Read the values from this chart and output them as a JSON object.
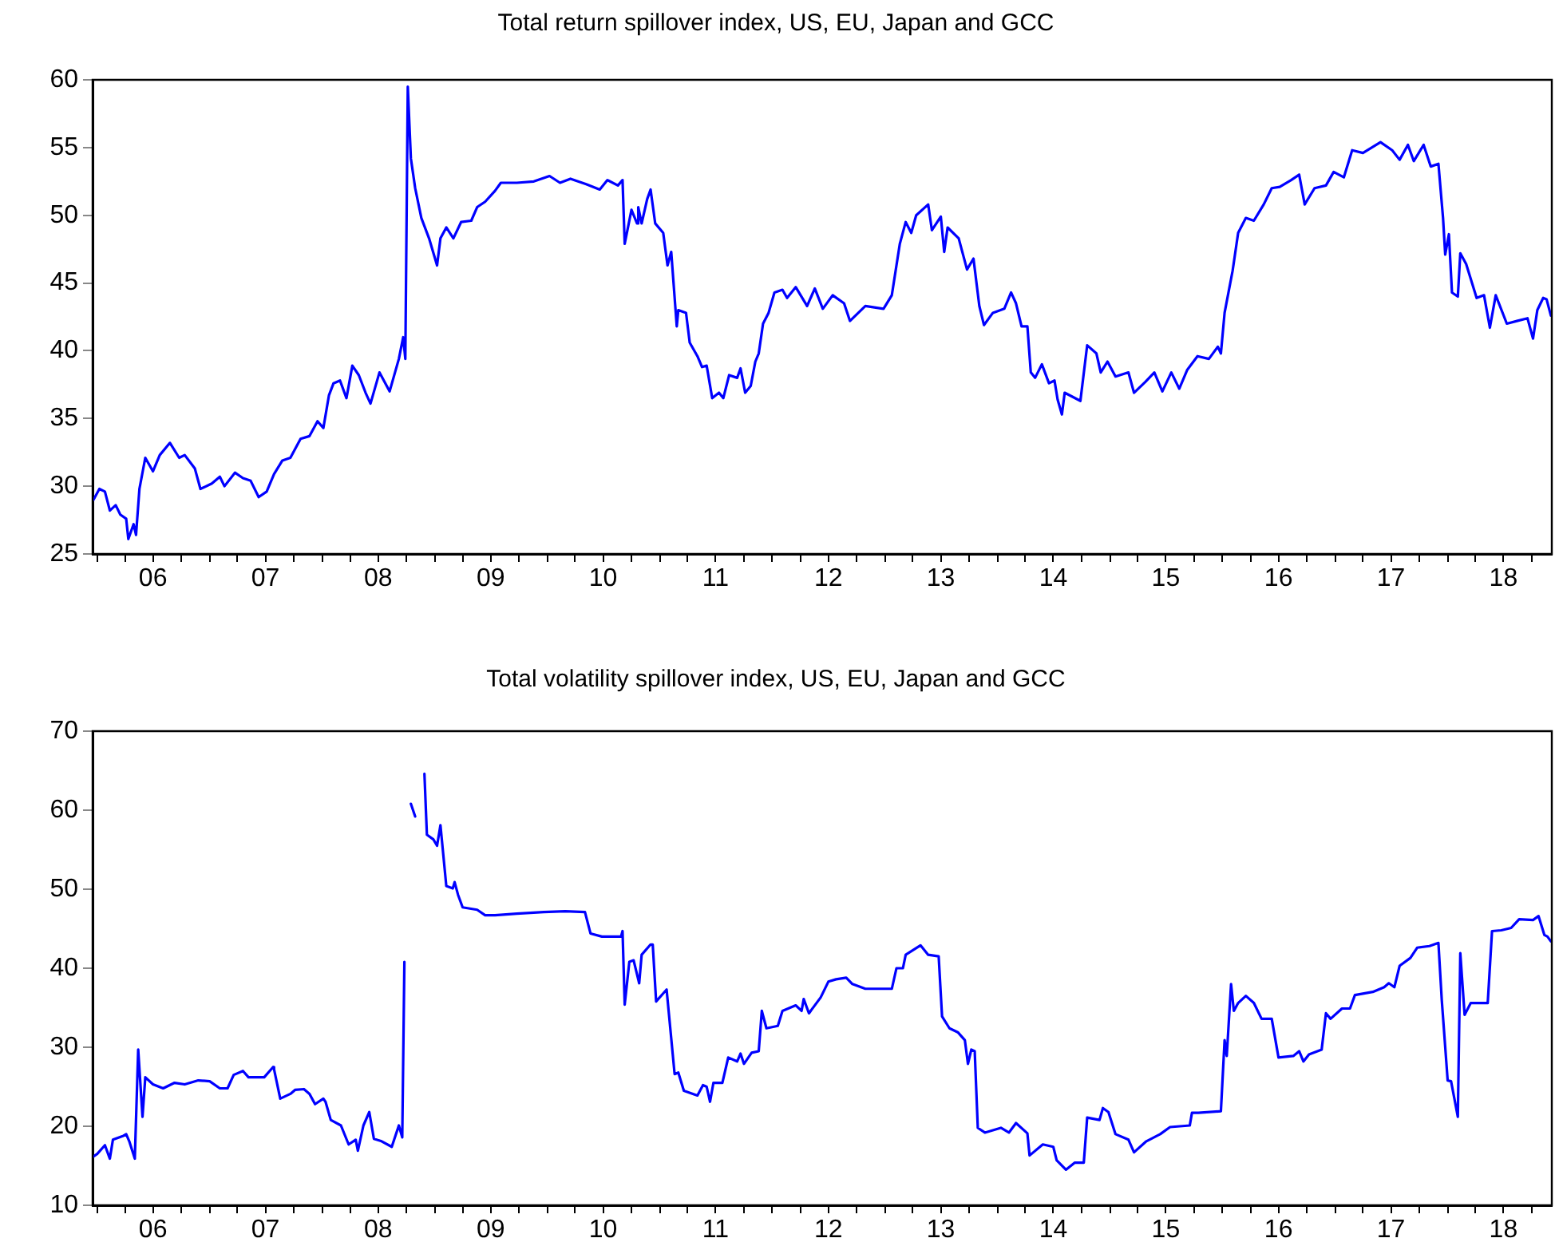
{
  "chart_data": [
    {
      "type": "line",
      "title": "Total return spillover index, US, EU, Japan and GCC",
      "color": "#0000ff",
      "marker": "none",
      "grid": false,
      "xlim": [
        "2005-12-17",
        "2018-12-05"
      ],
      "ylim": [
        25,
        60
      ],
      "yticks": [
        25,
        30,
        35,
        40,
        45,
        50,
        55,
        60
      ],
      "xticks": [
        {
          "value": "2006-01-01",
          "label": null
        },
        {
          "value": "2006-04-01",
          "label": null
        },
        {
          "value": "2006-07-01",
          "label": "06"
        },
        {
          "value": "2006-10-01",
          "label": null
        },
        {
          "value": "2007-01-01",
          "label": null
        },
        {
          "value": "2007-04-01",
          "label": null
        },
        {
          "value": "2007-07-01",
          "label": "07"
        },
        {
          "value": "2007-10-01",
          "label": null
        },
        {
          "value": "2008-01-01",
          "label": null
        },
        {
          "value": "2008-04-01",
          "label": null
        },
        {
          "value": "2008-07-01",
          "label": "08"
        },
        {
          "value": "2008-10-01",
          "label": null
        },
        {
          "value": "2009-01-01",
          "label": null
        },
        {
          "value": "2009-04-01",
          "label": null
        },
        {
          "value": "2009-07-01",
          "label": "09"
        },
        {
          "value": "2009-10-01",
          "label": null
        },
        {
          "value": "2010-01-01",
          "label": null
        },
        {
          "value": "2010-04-01",
          "label": null
        },
        {
          "value": "2010-07-01",
          "label": "10"
        },
        {
          "value": "2010-10-01",
          "label": null
        },
        {
          "value": "2011-01-01",
          "label": null
        },
        {
          "value": "2011-04-01",
          "label": null
        },
        {
          "value": "2011-07-01",
          "label": "11"
        },
        {
          "value": "2011-10-01",
          "label": null
        },
        {
          "value": "2012-01-01",
          "label": null
        },
        {
          "value": "2012-04-01",
          "label": null
        },
        {
          "value": "2012-07-01",
          "label": "12"
        },
        {
          "value": "2012-10-01",
          "label": null
        },
        {
          "value": "2013-01-01",
          "label": null
        },
        {
          "value": "2013-04-01",
          "label": null
        },
        {
          "value": "2013-07-01",
          "label": "13"
        },
        {
          "value": "2013-10-01",
          "label": null
        },
        {
          "value": "2014-01-01",
          "label": null
        },
        {
          "value": "2014-04-01",
          "label": null
        },
        {
          "value": "2014-07-01",
          "label": "14"
        },
        {
          "value": "2014-10-01",
          "label": null
        },
        {
          "value": "2015-01-01",
          "label": null
        },
        {
          "value": "2015-04-01",
          "label": null
        },
        {
          "value": "2015-07-01",
          "label": "15"
        },
        {
          "value": "2015-10-01",
          "label": null
        },
        {
          "value": "2016-01-01",
          "label": null
        },
        {
          "value": "2016-04-01",
          "label": null
        },
        {
          "value": "2016-07-01",
          "label": "16"
        },
        {
          "value": "2016-10-01",
          "label": null
        },
        {
          "value": "2017-01-01",
          "label": null
        },
        {
          "value": "2017-04-01",
          "label": null
        },
        {
          "value": "2017-07-01",
          "label": "17"
        },
        {
          "value": "2017-10-01",
          "label": null
        },
        {
          "value": "2018-01-01",
          "label": null
        },
        {
          "value": "2018-04-01",
          "label": null
        },
        {
          "value": "2018-07-01",
          "label": "18"
        },
        {
          "value": "2018-10-01",
          "label": null
        }
      ],
      "x": [
        "2005-12-20",
        "2006-01-08",
        "2006-01-26",
        "2006-02-11",
        "2006-03-02",
        "2006-03-17",
        "2006-04-05",
        "2006-04-12",
        "2006-04-29",
        "2006-05-07",
        "2006-05-18",
        "2006-06-06",
        "2006-07-01",
        "2006-07-23",
        "2006-08-25",
        "2006-09-24",
        "2006-10-12",
        "2006-11-14",
        "2006-12-02",
        "2007-01-08",
        "2007-02-03",
        "2007-02-18",
        "2007-03-24",
        "2007-04-19",
        "2007-05-14",
        "2007-06-09",
        "2007-07-05",
        "2007-07-29",
        "2007-08-25",
        "2007-09-20",
        "2007-10-23",
        "2007-11-21",
        "2007-12-17",
        "2008-01-05",
        "2008-01-23",
        "2008-02-07",
        "2008-02-28",
        "2008-03-20",
        "2008-04-08",
        "2008-04-29",
        "2008-05-21",
        "2008-06-06",
        "2008-07-05",
        "2008-08-07",
        "2008-09-06",
        "2008-09-20",
        "2008-09-27",
        "2008-10-05",
        "2008-10-15",
        "2008-10-29",
        "2008-11-18",
        "2008-12-13",
        "2009-01-08",
        "2009-01-19",
        "2009-02-07",
        "2009-03-02",
        "2009-03-27",
        "2009-04-29",
        "2009-05-18",
        "2009-06-13",
        "2009-07-15",
        "2009-08-03",
        "2009-09-24",
        "2009-11-18",
        "2010-01-08",
        "2010-02-11",
        "2010-03-17",
        "2010-05-07",
        "2010-06-20",
        "2010-07-15",
        "2010-08-18",
        "2010-09-02",
        "2010-09-09",
        "2010-10-01",
        "2010-10-19",
        "2010-10-23",
        "2010-11-03",
        "2010-11-21",
        "2010-12-02",
        "2010-12-17",
        "2011-01-12",
        "2011-01-26",
        "2011-02-07",
        "2011-02-25",
        "2011-03-02",
        "2011-03-27",
        "2011-04-08",
        "2011-05-03",
        "2011-05-18",
        "2011-06-02",
        "2011-06-20",
        "2011-07-12",
        "2011-07-26",
        "2011-08-14",
        "2011-09-09",
        "2011-09-20",
        "2011-10-05",
        "2011-10-23",
        "2011-11-07",
        "2011-11-18",
        "2011-12-02",
        "2011-12-20",
        "2012-01-08",
        "2012-02-03",
        "2012-02-18",
        "2012-03-17",
        "2012-04-23",
        "2012-05-18",
        "2012-06-13",
        "2012-07-15",
        "2012-08-21",
        "2012-09-09",
        "2012-10-29",
        "2012-12-27",
        "2013-01-23",
        "2013-02-18",
        "2013-03-09",
        "2013-03-27",
        "2013-04-12",
        "2013-05-21",
        "2013-06-02",
        "2013-07-01",
        "2013-07-12",
        "2013-07-23",
        "2013-08-28",
        "2013-09-24",
        "2013-10-15",
        "2013-11-03",
        "2013-11-18",
        "2013-12-17",
        "2014-01-23",
        "2014-02-14",
        "2014-03-02",
        "2014-03-20",
        "2014-04-08",
        "2014-04-19",
        "2014-05-03",
        "2014-05-25",
        "2014-06-17",
        "2014-07-05",
        "2014-07-15",
        "2014-07-29",
        "2014-08-07",
        "2014-09-27",
        "2014-10-19",
        "2014-11-18",
        "2014-12-02",
        "2014-12-24",
        "2015-01-19",
        "2015-03-02",
        "2015-03-20",
        "2015-04-26",
        "2015-05-25",
        "2015-06-20",
        "2015-07-19",
        "2015-08-14",
        "2015-09-09",
        "2015-10-12",
        "2015-11-18",
        "2015-12-17",
        "2015-12-27",
        "2016-01-08",
        "2016-02-03",
        "2016-02-21",
        "2016-03-17",
        "2016-04-12",
        "2016-05-14",
        "2016-06-09",
        "2016-07-05",
        "2016-08-11",
        "2016-09-06",
        "2016-09-24",
        "2016-10-26",
        "2016-12-02",
        "2016-12-27",
        "2017-01-29",
        "2017-02-25",
        "2017-04-01",
        "2017-05-28",
        "2017-07-05",
        "2017-07-29",
        "2017-08-25",
        "2017-09-13",
        "2017-10-15",
        "2017-11-07",
        "2017-12-02",
        "2017-12-17",
        "2017-12-24",
        "2018-01-05",
        "2018-01-15",
        "2018-02-03",
        "2018-02-11",
        "2018-03-02",
        "2018-04-05",
        "2018-04-29",
        "2018-05-18",
        "2018-06-06",
        "2018-07-12",
        "2018-08-14",
        "2018-09-17",
        "2018-10-05",
        "2018-10-19",
        "2018-11-07",
        "2018-11-18",
        "2018-12-02"
      ],
      "values": [
        29.0,
        29.8,
        29.6,
        28.2,
        28.6,
        27.9,
        27.6,
        26.1,
        27.2,
        26.4,
        29.8,
        32.1,
        31.1,
        32.3,
        33.2,
        32.1,
        32.3,
        31.3,
        29.8,
        30.2,
        30.7,
        30.0,
        31.0,
        30.6,
        30.4,
        29.2,
        29.6,
        30.9,
        31.9,
        32.1,
        33.5,
        33.7,
        34.8,
        34.3,
        36.7,
        37.6,
        37.8,
        36.5,
        38.9,
        38.2,
        36.9,
        36.1,
        38.4,
        37.0,
        39.4,
        41.0,
        39.4,
        59.5,
        54.2,
        52.0,
        49.8,
        48.3,
        46.3,
        48.3,
        49.1,
        48.3,
        49.5,
        49.6,
        50.6,
        51.0,
        51.8,
        52.4,
        52.4,
        52.5,
        52.9,
        52.4,
        52.7,
        52.3,
        51.9,
        52.6,
        52.2,
        52.6,
        47.9,
        50.4,
        49.4,
        50.6,
        49.4,
        51.2,
        51.9,
        49.4,
        48.7,
        46.3,
        47.3,
        41.8,
        43.0,
        42.8,
        40.6,
        39.6,
        38.8,
        38.9,
        36.5,
        36.9,
        36.5,
        38.2,
        38.0,
        38.7,
        36.9,
        37.4,
        39.2,
        39.8,
        42.0,
        42.8,
        44.3,
        44.5,
        43.9,
        44.7,
        43.3,
        44.6,
        43.1,
        44.1,
        43.5,
        42.2,
        43.3,
        43.1,
        44.1,
        47.9,
        49.5,
        48.7,
        50.0,
        50.8,
        48.9,
        49.9,
        47.3,
        49.1,
        48.3,
        46.0,
        46.8,
        43.3,
        41.9,
        42.8,
        43.1,
        44.3,
        43.5,
        41.8,
        41.8,
        38.4,
        38.0,
        39.0,
        37.6,
        37.8,
        36.4,
        35.3,
        36.9,
        36.3,
        40.4,
        39.8,
        38.4,
        39.2,
        38.1,
        38.4,
        36.9,
        37.7,
        38.4,
        37.0,
        38.4,
        37.2,
        38.6,
        39.6,
        39.4,
        40.3,
        39.8,
        42.8,
        45.9,
        48.7,
        49.8,
        49.6,
        50.8,
        52.0,
        52.1,
        52.6,
        53.0,
        50.8,
        52.0,
        52.2,
        53.2,
        52.8,
        54.8,
        54.6,
        55.4,
        54.8,
        54.1,
        55.2,
        54.0,
        55.2,
        53.6,
        53.8,
        49.8,
        47.1,
        48.6,
        44.3,
        44.0,
        47.2,
        46.4,
        43.9,
        44.1,
        41.7,
        44.1,
        42.0,
        42.2,
        42.4,
        40.9,
        43.0,
        43.9,
        43.8,
        42.6
      ]
    },
    {
      "type": "line",
      "title": "Total volatility spillover index, US, EU, Japan and GCC",
      "color": "#0000ff",
      "marker": "none",
      "grid": false,
      "xlim": [
        "2005-12-17",
        "2018-12-05"
      ],
      "ylim": [
        10,
        70
      ],
      "yticks": [
        10,
        20,
        30,
        40,
        50,
        60,
        70
      ],
      "xticks": [
        {
          "value": "2006-01-01",
          "label": null
        },
        {
          "value": "2006-04-01",
          "label": null
        },
        {
          "value": "2006-07-01",
          "label": "06"
        },
        {
          "value": "2006-10-01",
          "label": null
        },
        {
          "value": "2007-01-01",
          "label": null
        },
        {
          "value": "2007-04-01",
          "label": null
        },
        {
          "value": "2007-07-01",
          "label": "07"
        },
        {
          "value": "2007-10-01",
          "label": null
        },
        {
          "value": "2008-01-01",
          "label": null
        },
        {
          "value": "2008-04-01",
          "label": null
        },
        {
          "value": "2008-07-01",
          "label": "08"
        },
        {
          "value": "2008-10-01",
          "label": null
        },
        {
          "value": "2009-01-01",
          "label": null
        },
        {
          "value": "2009-04-01",
          "label": null
        },
        {
          "value": "2009-07-01",
          "label": "09"
        },
        {
          "value": "2009-10-01",
          "label": null
        },
        {
          "value": "2010-01-01",
          "label": null
        },
        {
          "value": "2010-04-01",
          "label": null
        },
        {
          "value": "2010-07-01",
          "label": "10"
        },
        {
          "value": "2010-10-01",
          "label": null
        },
        {
          "value": "2011-01-01",
          "label": null
        },
        {
          "value": "2011-04-01",
          "label": null
        },
        {
          "value": "2011-07-01",
          "label": "11"
        },
        {
          "value": "2011-10-01",
          "label": null
        },
        {
          "value": "2012-01-01",
          "label": null
        },
        {
          "value": "2012-04-01",
          "label": null
        },
        {
          "value": "2012-07-01",
          "label": "12"
        },
        {
          "value": "2012-10-01",
          "label": null
        },
        {
          "value": "2013-01-01",
          "label": null
        },
        {
          "value": "2013-04-01",
          "label": null
        },
        {
          "value": "2013-07-01",
          "label": "13"
        },
        {
          "value": "2013-10-01",
          "label": null
        },
        {
          "value": "2014-01-01",
          "label": null
        },
        {
          "value": "2014-04-01",
          "label": null
        },
        {
          "value": "2014-07-01",
          "label": "14"
        },
        {
          "value": "2014-10-01",
          "label": null
        },
        {
          "value": "2015-01-01",
          "label": null
        },
        {
          "value": "2015-04-01",
          "label": null
        },
        {
          "value": "2015-07-01",
          "label": "15"
        },
        {
          "value": "2015-10-01",
          "label": null
        },
        {
          "value": "2016-01-01",
          "label": null
        },
        {
          "value": "2016-04-01",
          "label": null
        },
        {
          "value": "2016-07-01",
          "label": "16"
        },
        {
          "value": "2016-10-01",
          "label": null
        },
        {
          "value": "2017-01-01",
          "label": null
        },
        {
          "value": "2017-04-01",
          "label": null
        },
        {
          "value": "2017-07-01",
          "label": "17"
        },
        {
          "value": "2017-10-01",
          "label": null
        },
        {
          "value": "2018-01-01",
          "label": null
        },
        {
          "value": "2018-04-01",
          "label": null
        },
        {
          "value": "2018-07-01",
          "label": "18"
        },
        {
          "value": "2018-10-01",
          "label": null
        }
      ],
      "x": [
        "2005-12-17",
        "2006-01-01",
        "2006-01-26",
        "2006-02-11",
        "2006-02-21",
        "2006-03-27",
        "2006-04-05",
        "2006-04-15",
        "2006-05-03",
        "2006-05-14",
        "2006-05-28",
        "2006-06-06",
        "2006-07-01",
        "2006-08-03",
        "2006-09-09",
        "2006-10-12",
        "2006-11-25",
        "2007-01-01",
        "2007-02-03",
        "2007-02-28",
        "2007-03-20",
        "2007-04-19",
        "2007-05-07",
        "2007-06-27",
        "2007-07-26",
        "2007-07-29",
        "2007-08-18",
        "2007-09-20",
        "2007-10-05",
        "2007-11-03",
        "2007-11-21",
        "2007-12-09",
        "2008-01-05",
        "2008-01-12",
        "2008-01-29",
        "2008-03-02",
        "2008-03-27",
        "2008-04-19",
        "2008-04-26",
        "2008-05-14",
        "2008-06-02",
        "2008-06-17",
        "2008-07-12",
        "2008-08-14",
        "2008-09-06",
        "2008-09-17",
        "2008-09-24",
        "2008-10-05",
        "2008-10-15",
        "2008-10-29",
        "2008-11-14",
        "2008-11-28",
        "2008-12-06",
        "2008-12-27",
        "2009-01-08",
        "2009-01-19",
        "2009-02-07",
        "2009-02-28",
        "2009-03-06",
        "2009-03-17",
        "2009-04-01",
        "2009-05-18",
        "2009-06-13",
        "2009-07-15",
        "2009-09-24",
        "2009-12-20",
        "2010-02-28",
        "2010-05-03",
        "2010-05-21",
        "2010-06-27",
        "2010-08-28",
        "2010-09-02",
        "2010-09-09",
        "2010-09-24",
        "2010-10-08",
        "2010-10-26",
        "2010-11-03",
        "2010-12-02",
        "2010-12-09",
        "2010-12-20",
        "2011-01-23",
        "2011-02-18",
        "2011-03-02",
        "2011-03-20",
        "2011-05-03",
        "2011-05-21",
        "2011-06-02",
        "2011-06-13",
        "2011-06-24",
        "2011-07-23",
        "2011-08-11",
        "2011-09-09",
        "2011-09-20",
        "2011-10-01",
        "2011-10-26",
        "2011-11-18",
        "2011-11-28",
        "2011-12-13",
        "2012-01-19",
        "2012-02-03",
        "2012-03-17",
        "2012-04-05",
        "2012-04-12",
        "2012-04-29",
        "2012-06-06",
        "2012-07-01",
        "2012-07-26",
        "2012-08-28",
        "2012-09-17",
        "2012-10-29",
        "2013-01-23",
        "2013-02-07",
        "2013-02-28",
        "2013-03-09",
        "2013-04-26",
        "2013-05-21",
        "2013-06-24",
        "2013-07-05",
        "2013-07-29",
        "2013-08-25",
        "2013-09-17",
        "2013-09-27",
        "2013-10-08",
        "2013-10-19",
        "2013-10-29",
        "2013-11-21",
        "2014-01-12",
        "2014-02-07",
        "2014-03-02",
        "2014-04-08",
        "2014-04-15",
        "2014-05-28",
        "2014-07-01",
        "2014-07-12",
        "2014-08-11",
        "2014-09-09",
        "2014-10-08",
        "2014-10-19",
        "2014-11-28",
        "2014-12-09",
        "2014-12-27",
        "2015-01-19",
        "2015-03-02",
        "2015-03-20",
        "2015-04-29",
        "2015-06-13",
        "2015-07-15",
        "2015-09-17",
        "2015-09-24",
        "2015-10-15",
        "2015-12-27",
        "2016-01-08",
        "2016-01-15",
        "2016-01-29",
        "2016-02-07",
        "2016-02-21",
        "2016-03-17",
        "2016-04-12",
        "2016-05-07",
        "2016-06-09",
        "2016-07-01",
        "2016-08-18",
        "2016-09-06",
        "2016-09-20",
        "2016-10-08",
        "2016-11-18",
        "2016-12-02",
        "2016-12-17",
        "2017-01-23",
        "2017-02-18",
        "2017-03-06",
        "2017-05-03",
        "2017-06-09",
        "2017-06-24",
        "2017-07-12",
        "2017-07-29",
        "2017-09-02",
        "2017-09-24",
        "2017-11-03",
        "2017-12-02",
        "2017-12-13",
        "2018-01-01",
        "2018-01-12",
        "2018-02-03",
        "2018-02-11",
        "2018-02-25",
        "2018-03-17",
        "2018-05-11",
        "2018-05-25",
        "2018-06-24",
        "2018-07-26",
        "2018-08-21",
        "2018-10-05",
        "2018-10-23",
        "2018-11-11",
        "2018-11-21",
        "2018-12-02"
      ],
      "values": [
        16.1,
        16.5,
        17.6,
        15.9,
        18.3,
        18.8,
        19.0,
        18.1,
        15.9,
        29.7,
        21.2,
        26.2,
        25.3,
        24.8,
        25.5,
        25.3,
        25.8,
        25.7,
        24.8,
        24.8,
        26.5,
        27.0,
        26.2,
        26.2,
        27.5,
        27.2,
        23.5,
        24.1,
        24.6,
        24.7,
        24.1,
        22.8,
        23.5,
        23.1,
        20.8,
        20.1,
        17.7,
        18.3,
        16.9,
        20.1,
        21.8,
        18.4,
        18.1,
        17.4,
        20.1,
        18.6,
        40.8,
        null,
        60.8,
        59.2,
        null,
        64.6,
        56.9,
        56.3,
        55.5,
        58.1,
        50.4,
        50.1,
        50.9,
        49.3,
        47.7,
        47.4,
        46.7,
        46.7,
        46.9,
        47.1,
        47.2,
        47.1,
        44.4,
        44.0,
        44.0,
        44.7,
        35.4,
        40.8,
        41.0,
        38.1,
        41.7,
        43.0,
        43.0,
        35.8,
        37.3,
        26.6,
        26.8,
        24.5,
        23.9,
        25.2,
        25.0,
        23.1,
        25.5,
        25.5,
        28.7,
        28.2,
        29.2,
        27.9,
        29.3,
        29.5,
        34.6,
        32.4,
        32.7,
        34.6,
        35.3,
        34.6,
        36.1,
        34.3,
        36.3,
        38.3,
        38.6,
        38.8,
        38.0,
        37.4,
        37.4,
        40.0,
        40.0,
        41.7,
        42.9,
        41.7,
        41.5,
        33.9,
        32.4,
        31.9,
        30.9,
        27.9,
        29.7,
        29.5,
        19.8,
        19.2,
        19.8,
        19.2,
        20.4,
        19.1,
        16.3,
        17.7,
        17.4,
        15.7,
        14.5,
        15.4,
        15.4,
        21.1,
        20.8,
        22.3,
        21.8,
        19.0,
        18.3,
        16.7,
        18.1,
        19.0,
        19.9,
        20.1,
        21.7,
        21.7,
        21.9,
        30.9,
        28.9,
        38.0,
        34.6,
        35.6,
        36.5,
        35.6,
        33.6,
        33.6,
        28.7,
        28.9,
        29.5,
        28.2,
        29.1,
        29.7,
        34.3,
        33.6,
        34.9,
        34.9,
        36.6,
        37.0,
        37.6,
        38.1,
        37.6,
        40.3,
        41.3,
        42.6,
        42.8,
        43.2,
        35.9,
        25.8,
        25.7,
        21.2,
        41.9,
        34.1,
        35.6,
        35.6,
        44.7,
        44.8,
        45.1,
        46.2,
        46.1,
        46.6,
        44.2,
        44.0,
        43.4
      ]
    }
  ]
}
